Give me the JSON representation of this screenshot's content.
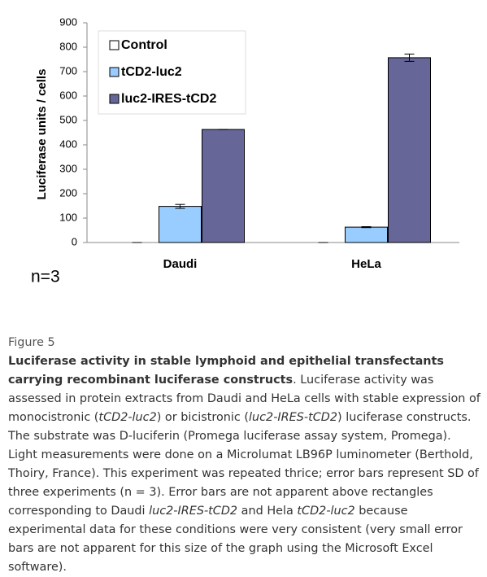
{
  "chart_data": {
    "type": "bar",
    "categories": [
      "Daudi",
      "HeLa"
    ],
    "series": [
      {
        "name": "Control",
        "color": "#ffffff",
        "values": [
          0,
          0
        ],
        "errors": [
          0,
          0
        ]
      },
      {
        "name": "tCD2-luc2",
        "color": "#99ccff",
        "values": [
          148,
          63
        ],
        "errors": [
          8,
          2
        ]
      },
      {
        "name": "luc2-IRES-tCD2",
        "color": "#666699",
        "values": [
          463,
          757
        ],
        "errors": [
          0,
          15
        ]
      }
    ],
    "y_label": "Luciferase units / cells",
    "annotation": "n=3",
    "ylim": [
      0,
      900
    ],
    "yticks": [
      0,
      100,
      200,
      300,
      400,
      500,
      600,
      700,
      800,
      900
    ],
    "grid": false,
    "legend": "top-left"
  },
  "caption": {
    "label": "Figure 5",
    "parts": [
      {
        "text": "Luciferase activity in stable lymphoid and epithelial transfectants carrying recombinant luciferase constructs",
        "style": "bold"
      },
      {
        "text": ". Luciferase activity was assessed in protein extracts from Daudi and HeLa cells with stable expression of monocistronic (",
        "style": "normal"
      },
      {
        "text": "tCD2-luc2",
        "style": "italic"
      },
      {
        "text": ") or bicistronic (",
        "style": "normal"
      },
      {
        "text": "luc2-IRES-tCD2",
        "style": "italic"
      },
      {
        "text": ") luciferase constructs. The substrate was D-luciferin (Promega luciferase assay system, Promega). Light measurements were done on a Microlumat LB96P luminometer (Berthold, Thoiry, France). This experiment was repeated thrice; error bars represent SD of three experiments (n = 3). Error bars are not apparent above rectangles corresponding to Daudi ",
        "style": "normal"
      },
      {
        "text": "luc2-IRES-tCD2",
        "style": "italic"
      },
      {
        "text": " and Hela ",
        "style": "normal"
      },
      {
        "text": "tCD2-luc2",
        "style": "italic"
      },
      {
        "text": " because experimental data for these conditions were very consistent (very small error bars are not apparent for this size of the graph using the Microsoft Excel software).",
        "style": "normal"
      }
    ]
  }
}
